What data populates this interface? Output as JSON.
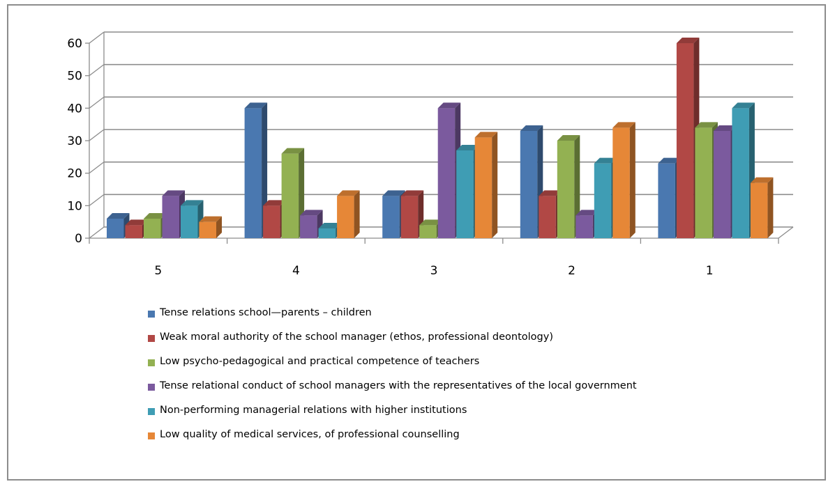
{
  "chart_data": {
    "type": "bar",
    "categories": [
      "5",
      "4",
      "3",
      "2",
      "1"
    ],
    "ylim": [
      0,
      60
    ],
    "yticks": [
      "0",
      "10",
      "20",
      "30",
      "40",
      "50",
      "60"
    ],
    "grid": true,
    "legend_position": "bottom",
    "series": [
      {
        "name": "Tense relations school—parents – children",
        "color": "#4a78b0",
        "values": [
          6,
          40,
          13,
          33,
          23
        ]
      },
      {
        "name": "Weak moral authority of the school manager (ethos, professional deontology)",
        "color": "#b14845",
        "values": [
          4,
          10,
          13,
          13,
          60
        ]
      },
      {
        "name": "Low psycho-pedagogical and practical competence of teachers",
        "color": "#93b152",
        "values": [
          6,
          26,
          4,
          30,
          34
        ]
      },
      {
        "name": "Tense relational conduct of school managers with the representatives of the local government",
        "color": "#7b5a9e",
        "values": [
          13,
          7,
          40,
          7,
          33
        ]
      },
      {
        "name": "Non-performing managerial relations with higher institutions",
        "color": "#3f9db4",
        "values": [
          10,
          3,
          27,
          23,
          40
        ]
      },
      {
        "name": "Low quality of medical services, of professional counselling",
        "color": "#e68737",
        "values": [
          5,
          13,
          31,
          34,
          17
        ]
      }
    ]
  },
  "legend": {
    "items": [
      {
        "label": "Tense relations school—parents – children",
        "color": "#4a78b0"
      },
      {
        "label": "Weak moral authority of the school manager (ethos, professional deontology)",
        "color": "#b14845"
      },
      {
        "label": "Low psycho-pedagogical and practical competence of teachers",
        "color": "#93b152"
      },
      {
        "label": "Tense relational conduct of school managers with the representatives of the local government",
        "color": "#7b5a9e"
      },
      {
        "label": "Non-performing managerial relations with higher institutions",
        "color": "#3f9db4"
      },
      {
        "label": "Low quality of medical services, of professional counselling",
        "color": "#e68737"
      }
    ]
  }
}
